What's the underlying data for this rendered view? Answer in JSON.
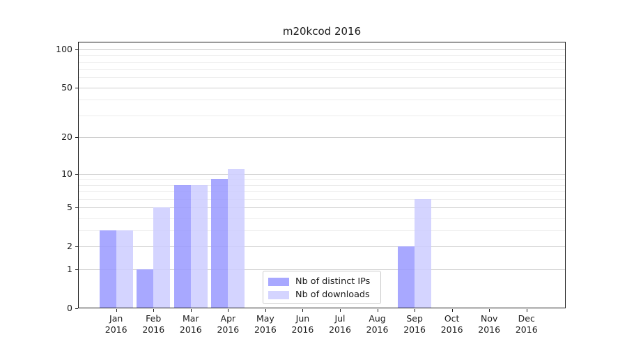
{
  "title": "m20kcod 2016",
  "chart_data": {
    "type": "bar",
    "title": "m20kcod 2016",
    "categories": [
      "Jan 2016",
      "Feb 2016",
      "Mar 2016",
      "Apr 2016",
      "May 2016",
      "Jun 2016",
      "Jul 2016",
      "Aug 2016",
      "Sep 2016",
      "Oct 2016",
      "Nov 2016",
      "Dec 2016"
    ],
    "series": [
      {
        "name": "Nb of distinct IPs",
        "color": "#9999ff",
        "values": [
          3,
          1,
          8,
          9,
          0,
          0,
          0,
          0,
          2,
          0,
          0,
          0
        ]
      },
      {
        "name": "Nb of downloads",
        "color": "#ccccff",
        "values": [
          3,
          5,
          8,
          11,
          0,
          0,
          0,
          0,
          6,
          0,
          0,
          0
        ]
      }
    ],
    "bar_alpha": 0.85,
    "scale": "log1p",
    "ylim": [
      0,
      115
    ],
    "xlabel": "",
    "ylabel": "",
    "y_major_ticks": [
      0,
      1,
      2,
      5,
      10,
      20,
      50,
      100
    ],
    "y_minor_ticks": [
      3,
      4,
      6,
      7,
      8,
      9,
      30,
      40,
      60,
      70,
      80,
      90
    ],
    "grid": true,
    "legend_position": "lower center",
    "colors": {
      "axis": "#1a1a1a",
      "text": "#1a1a1a",
      "major_grid": "#cdcdcd",
      "minor_grid": "#ececec",
      "background": "#ffffff"
    }
  }
}
